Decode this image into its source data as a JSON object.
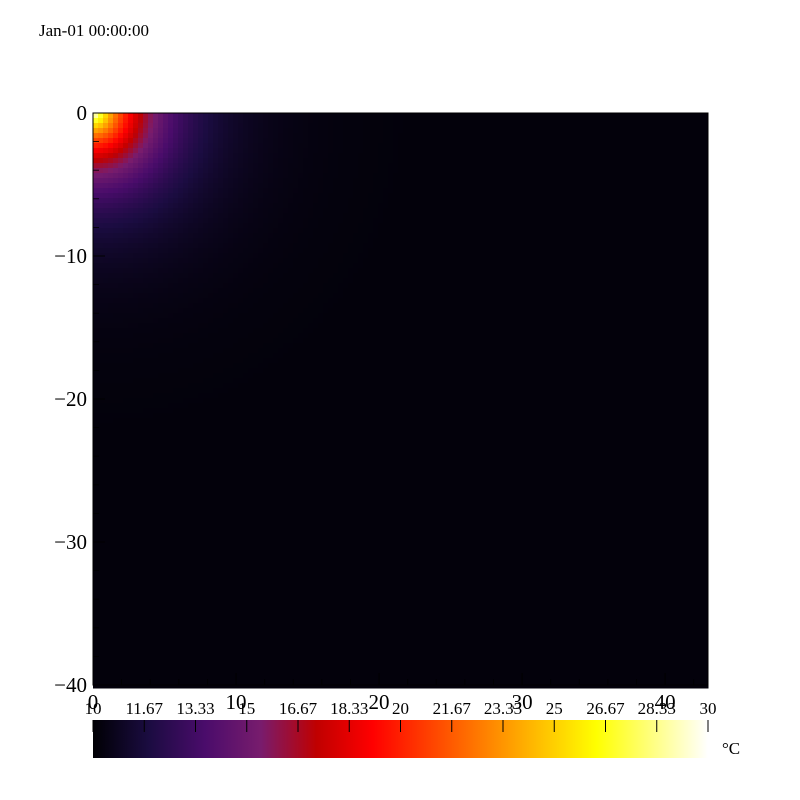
{
  "time_label": "Jan-01 00:00:00",
  "chart_data": {
    "type": "heatmap",
    "title": "",
    "xlabel": "",
    "ylabel": "",
    "xlim": [
      0,
      43
    ],
    "ylim": [
      -40,
      0
    ],
    "x_ticks": [
      0,
      10,
      20,
      30,
      40
    ],
    "y_ticks": [
      0,
      -10,
      -20,
      -30,
      -40
    ],
    "field": {
      "description_source": "temperature field, hot at top-left corner decaying with distance",
      "source_point": [
        0,
        0
      ],
      "max_value": 30,
      "background_value": 10.2,
      "decay_length": 3.2
    },
    "colorbar": {
      "unit": "°C",
      "min": 10,
      "max": 30,
      "tick_labels": [
        "10",
        "11.67",
        "13.33",
        "15",
        "16.67",
        "18.33",
        "20",
        "21.67",
        "23.33",
        "25",
        "26.67",
        "28.33",
        "30"
      ],
      "colormap": [
        "#000004",
        "#1b0c41",
        "#4a0c6b",
        "#781c6d",
        "#c00000",
        "#ff0000",
        "#ff4000",
        "#ff8000",
        "#ffc000",
        "#ffff00",
        "#ffff80",
        "#ffffff"
      ]
    }
  }
}
